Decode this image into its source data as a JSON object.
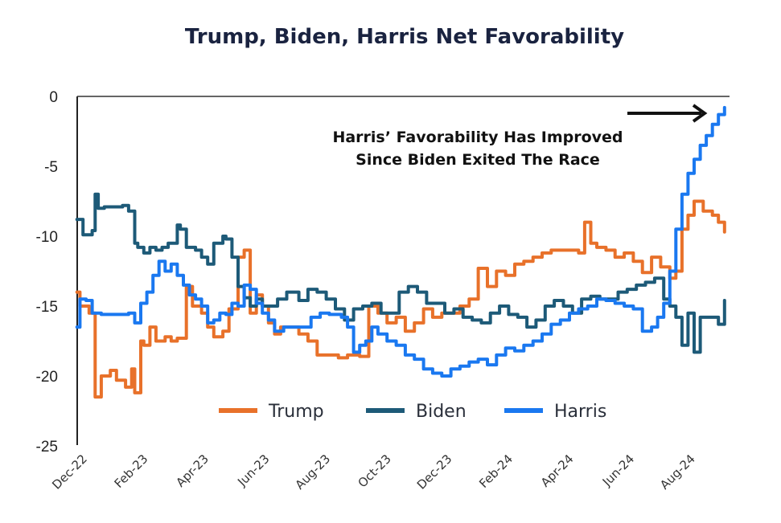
{
  "chart_data": {
    "type": "line",
    "title": "Trump, Biden, Harris Net Favorability",
    "xlabel": "",
    "ylabel": "",
    "ylim": [
      -25,
      0
    ],
    "yticks": [
      0,
      -5,
      -10,
      -15,
      -20,
      -25
    ],
    "ytick_labels": [
      "0",
      "-5",
      "-10",
      "-15",
      "-20",
      "-25"
    ],
    "xtick_labels": [
      "Dec-22",
      "Feb-23",
      "Apr-23",
      "Jun-23",
      "Aug-23",
      "Oct-23",
      "Dec-23",
      "Feb-24",
      "Apr-24",
      "Jun-24",
      "Aug-24"
    ],
    "x_unit": "months since Dec-22",
    "xlim": [
      -0.3,
      21.0
    ],
    "grid": false,
    "legend_position": "bottom-center",
    "annotation": {
      "lines": [
        "Harris’ Favorability Has Improved",
        "Since Biden Exited The Race"
      ],
      "arrow": "right-pointing arrow toward Harris line endpoint"
    },
    "series": [
      {
        "name": "Trump",
        "color": "#e8712a",
        "x": [
          -0.3,
          -0.2,
          0.1,
          0.3,
          0.5,
          0.8,
          1.0,
          1.3,
          1.5,
          1.6,
          1.8,
          1.9,
          2.1,
          2.3,
          2.6,
          2.8,
          3.0,
          3.3,
          3.5,
          3.8,
          4.0,
          4.2,
          4.5,
          4.7,
          5.0,
          5.2,
          5.4,
          5.6,
          5.8,
          6.0,
          6.2,
          6.4,
          6.7,
          7.0,
          7.3,
          7.6,
          8.0,
          8.3,
          8.6,
          9.0,
          9.3,
          9.6,
          9.9,
          10.2,
          10.5,
          10.8,
          11.1,
          11.4,
          11.7,
          12.0,
          12.3,
          12.6,
          12.9,
          13.2,
          13.5,
          13.8,
          14.1,
          14.4,
          14.7,
          15.0,
          15.3,
          15.6,
          15.9,
          16.2,
          16.4,
          16.6,
          16.8,
          17.1,
          17.4,
          17.7,
          18.0,
          18.3,
          18.6,
          18.9,
          19.2,
          19.4,
          19.6,
          19.8,
          20.0,
          20.3,
          20.6,
          20.8,
          21.0
        ],
        "values": [
          -14.0,
          -15.0,
          -15.5,
          -21.5,
          -20.0,
          -19.6,
          -20.3,
          -20.8,
          -19.5,
          -21.2,
          -17.5,
          -17.8,
          -16.5,
          -17.5,
          -17.2,
          -17.5,
          -17.3,
          -13.6,
          -15.0,
          -15.5,
          -16.5,
          -17.2,
          -16.8,
          -15.2,
          -11.5,
          -11.0,
          -15.5,
          -14.2,
          -15.0,
          -16.2,
          -17.0,
          -16.5,
          -16.5,
          -17.0,
          -17.5,
          -18.5,
          -18.5,
          -18.7,
          -18.5,
          -18.6,
          -15.0,
          -15.5,
          -16.2,
          -15.8,
          -16.8,
          -16.2,
          -15.2,
          -15.8,
          -15.5,
          -15.5,
          -15.0,
          -14.5,
          -12.3,
          -13.6,
          -12.5,
          -12.8,
          -12.0,
          -11.8,
          -11.5,
          -11.2,
          -11.0,
          -11.0,
          -11.0,
          -11.2,
          -9.0,
          -10.5,
          -10.8,
          -11.0,
          -11.5,
          -11.2,
          -11.8,
          -12.6,
          -11.5,
          -12.2,
          -13.0,
          -12.5,
          -9.5,
          -8.5,
          -7.5,
          -8.2,
          -8.5,
          -9.0,
          -9.7
        ]
      },
      {
        "name": "Biden",
        "color": "#1d5a78",
        "x": [
          -0.3,
          -0.1,
          0.2,
          0.3,
          0.4,
          0.6,
          0.9,
          1.2,
          1.4,
          1.6,
          1.7,
          1.9,
          2.1,
          2.3,
          2.5,
          2.7,
          3.0,
          3.1,
          3.3,
          3.6,
          3.8,
          4.0,
          4.2,
          4.5,
          4.6,
          4.8,
          5.0,
          5.2,
          5.4,
          5.6,
          5.8,
          6.0,
          6.3,
          6.6,
          7.0,
          7.3,
          7.6,
          7.9,
          8.2,
          8.5,
          8.8,
          9.1,
          9.4,
          9.7,
          10.0,
          10.3,
          10.6,
          10.9,
          11.2,
          11.5,
          11.8,
          12.1,
          12.4,
          12.7,
          13.0,
          13.3,
          13.6,
          13.9,
          14.2,
          14.5,
          14.8,
          15.1,
          15.4,
          15.7,
          16.0,
          16.3,
          16.6,
          16.9,
          17.2,
          17.5,
          17.8,
          18.1,
          18.4,
          18.7,
          19.0,
          19.2,
          19.4,
          19.6,
          19.8,
          20.0,
          20.2,
          20.5,
          20.8,
          21.0
        ],
        "values": [
          -8.8,
          -9.9,
          -9.6,
          -7.0,
          -8.0,
          -7.9,
          -7.9,
          -7.8,
          -8.2,
          -10.5,
          -10.8,
          -11.2,
          -10.8,
          -11.0,
          -10.8,
          -10.5,
          -9.2,
          -9.5,
          -10.8,
          -11.0,
          -11.5,
          -12.0,
          -10.5,
          -10.0,
          -10.2,
          -11.5,
          -13.6,
          -14.4,
          -15.0,
          -14.5,
          -15.0,
          -15.0,
          -14.5,
          -14.0,
          -14.6,
          -13.8,
          -14.0,
          -14.5,
          -15.2,
          -16.0,
          -15.2,
          -15.0,
          -14.8,
          -15.5,
          -15.5,
          -14.0,
          -13.6,
          -14.0,
          -14.8,
          -14.8,
          -15.5,
          -15.2,
          -15.8,
          -16.0,
          -16.2,
          -15.5,
          -15.0,
          -15.6,
          -15.8,
          -16.5,
          -16.0,
          -15.0,
          -14.6,
          -15.0,
          -15.5,
          -14.5,
          -14.3,
          -14.5,
          -14.5,
          -14.0,
          -13.8,
          -13.5,
          -13.3,
          -13.0,
          -14.5,
          -15.0,
          -15.8,
          -17.8,
          -15.5,
          -18.3,
          -15.8,
          -15.8,
          -16.3,
          -14.6
        ]
      },
      {
        "name": "Harris",
        "color": "#1a78f0",
        "x": [
          -0.3,
          -0.2,
          0.0,
          0.2,
          0.5,
          1.0,
          1.4,
          1.6,
          1.8,
          2.0,
          2.2,
          2.4,
          2.6,
          2.8,
          3.0,
          3.2,
          3.4,
          3.6,
          3.8,
          4.0,
          4.2,
          4.4,
          4.6,
          4.8,
          5.0,
          5.2,
          5.4,
          5.6,
          5.8,
          6.0,
          6.2,
          6.5,
          6.8,
          7.1,
          7.4,
          7.7,
          8.0,
          8.2,
          8.4,
          8.6,
          8.8,
          9.0,
          9.2,
          9.4,
          9.6,
          9.9,
          10.2,
          10.5,
          10.8,
          11.1,
          11.4,
          11.7,
          12.0,
          12.3,
          12.6,
          12.9,
          13.2,
          13.5,
          13.8,
          14.1,
          14.4,
          14.7,
          15.0,
          15.3,
          15.6,
          15.9,
          16.2,
          16.5,
          16.8,
          17.1,
          17.4,
          17.7,
          18.0,
          18.3,
          18.6,
          18.8,
          19.0,
          19.2,
          19.4,
          19.6,
          19.8,
          20.0,
          20.2,
          20.4,
          20.6,
          20.8,
          21.0
        ],
        "values": [
          -16.5,
          -14.5,
          -14.6,
          -15.5,
          -15.6,
          -15.6,
          -15.5,
          -16.2,
          -14.8,
          -14.0,
          -12.8,
          -11.8,
          -12.5,
          -12.0,
          -12.8,
          -13.5,
          -14.2,
          -14.5,
          -15.0,
          -16.2,
          -16.0,
          -15.5,
          -15.6,
          -14.8,
          -15.0,
          -13.5,
          -13.8,
          -14.8,
          -15.5,
          -16.0,
          -16.8,
          -16.5,
          -16.5,
          -16.5,
          -15.8,
          -15.5,
          -15.6,
          -15.6,
          -15.8,
          -16.5,
          -18.3,
          -17.8,
          -17.5,
          -16.5,
          -17.0,
          -17.5,
          -17.8,
          -18.5,
          -18.8,
          -19.5,
          -19.8,
          -20.0,
          -19.5,
          -19.3,
          -19.0,
          -18.8,
          -19.2,
          -18.5,
          -18.0,
          -18.2,
          -17.8,
          -17.5,
          -17.0,
          -16.3,
          -16.0,
          -15.5,
          -15.2,
          -15.0,
          -14.5,
          -14.6,
          -14.8,
          -15.0,
          -15.2,
          -16.8,
          -16.5,
          -15.8,
          -14.8,
          -12.5,
          -9.5,
          -7.0,
          -5.5,
          -4.5,
          -3.5,
          -2.8,
          -2.0,
          -1.3,
          -0.8
        ]
      }
    ]
  }
}
